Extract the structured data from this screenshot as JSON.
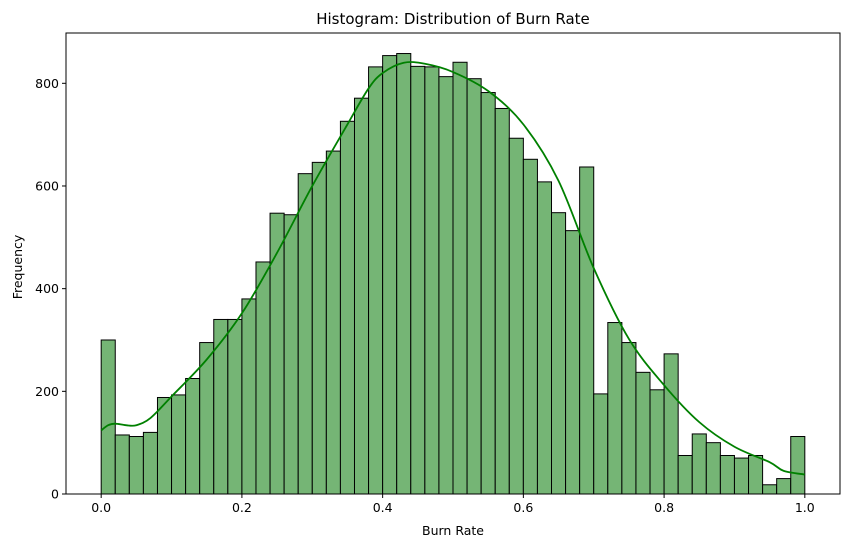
{
  "chart_data": {
    "type": "bar",
    "title": "Histogram: Distribution of Burn Rate",
    "xlabel": "Burn Rate",
    "ylabel": "Frequency",
    "xlim": [
      -0.05,
      1.05
    ],
    "ylim": [
      0,
      898
    ],
    "xticks": [
      0.0,
      0.2,
      0.4,
      0.6,
      0.8,
      1.0
    ],
    "xtick_labels": [
      "0.0",
      "0.2",
      "0.4",
      "0.6",
      "0.8",
      "1.0"
    ],
    "yticks": [
      0,
      200,
      400,
      600,
      800
    ],
    "ytick_labels": [
      "0",
      "200",
      "400",
      "600",
      "800"
    ],
    "grid": false,
    "bin_start": 0.0,
    "bin_width": 0.02,
    "values": [
      300,
      115,
      112,
      120,
      188,
      193,
      225,
      295,
      340,
      340,
      380,
      452,
      547,
      544,
      624,
      646,
      668,
      726,
      771,
      832,
      854,
      858,
      833,
      832,
      813,
      841,
      809,
      782,
      751,
      693,
      652,
      608,
      548,
      513,
      637,
      195,
      334,
      295,
      237,
      203,
      273,
      75,
      117,
      100,
      75,
      70,
      75,
      18,
      30,
      112
    ],
    "kde": {
      "x": [
        0.0,
        0.01,
        0.02,
        0.035,
        0.05,
        0.07,
        0.1,
        0.15,
        0.2,
        0.25,
        0.3,
        0.35,
        0.38,
        0.4,
        0.43,
        0.46,
        0.5,
        0.55,
        0.6,
        0.65,
        0.7,
        0.75,
        0.8,
        0.85,
        0.9,
        0.95,
        0.97,
        1.0
      ],
      "y": [
        124,
        134,
        137,
        134,
        134,
        148,
        190,
        262,
        352,
        470,
        600,
        720,
        790,
        820,
        840,
        838,
        822,
        785,
        720,
        610,
        440,
        302,
        212,
        140,
        92,
        62,
        45,
        38
      ]
    },
    "colors": {
      "bar_fill": "#75b575",
      "bar_edge": "#000000",
      "kde_line": "#008000"
    }
  }
}
